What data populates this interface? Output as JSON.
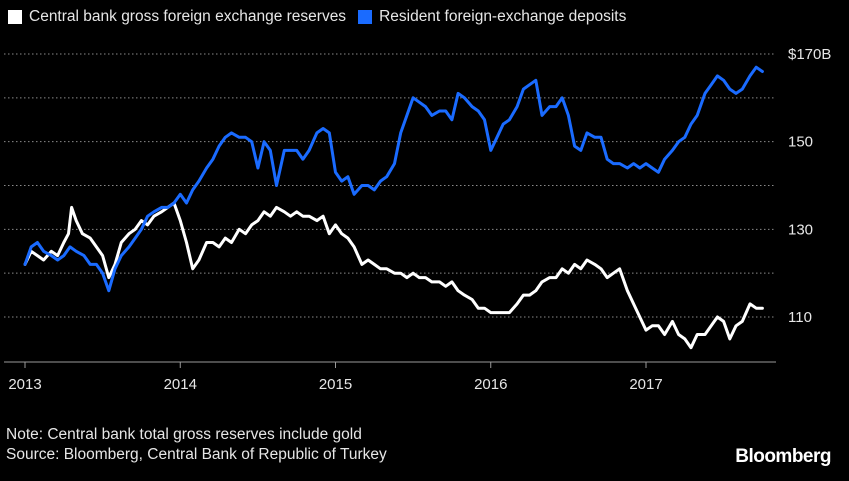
{
  "legend": [
    {
      "label": "Central bank gross foreign exchange reserves",
      "color": "#ffffff"
    },
    {
      "label": "Resident foreign-exchange deposits",
      "color": "#1a6bff"
    }
  ],
  "footer": {
    "note": "Note: Central bank total gross reserves include gold",
    "source": "Source: Bloomberg, Central Bank of Republic of Turkey"
  },
  "brand": "Bloomberg",
  "chart_data": {
    "type": "line",
    "title": "",
    "xlabel": "",
    "ylabel": "",
    "xlim": [
      2013.0,
      2017.8
    ],
    "ylim": [
      100,
      173
    ],
    "x_ticks": [
      {
        "value": 2013,
        "label": "2013"
      },
      {
        "value": 2014,
        "label": "2014"
      },
      {
        "value": 2015,
        "label": "2015"
      },
      {
        "value": 2016,
        "label": "2016"
      },
      {
        "value": 2017,
        "label": "2017"
      }
    ],
    "y_ticks": [
      {
        "value": 170,
        "label": "$170B"
      },
      {
        "value": 150,
        "label": "150"
      },
      {
        "value": 130,
        "label": "130"
      },
      {
        "value": 110,
        "label": "110"
      }
    ],
    "y_gridlines": [
      170,
      160,
      150,
      140,
      130,
      120,
      110
    ],
    "grid": true,
    "series": [
      {
        "name": "Central bank gross foreign exchange reserves",
        "color": "#ffffff",
        "points": [
          [
            2013.0,
            122
          ],
          [
            2013.04,
            125
          ],
          [
            2013.08,
            124
          ],
          [
            2013.12,
            123
          ],
          [
            2013.17,
            125
          ],
          [
            2013.21,
            124
          ],
          [
            2013.25,
            127
          ],
          [
            2013.28,
            129
          ],
          [
            2013.3,
            135
          ],
          [
            2013.33,
            132
          ],
          [
            2013.37,
            129
          ],
          [
            2013.42,
            128
          ],
          [
            2013.46,
            126
          ],
          [
            2013.5,
            124
          ],
          [
            2013.54,
            119
          ],
          [
            2013.58,
            122
          ],
          [
            2013.62,
            127
          ],
          [
            2013.67,
            129
          ],
          [
            2013.71,
            130
          ],
          [
            2013.75,
            132
          ],
          [
            2013.79,
            131
          ],
          [
            2013.83,
            133
          ],
          [
            2013.88,
            134
          ],
          [
            2013.92,
            135
          ],
          [
            2013.96,
            136
          ],
          [
            2014.0,
            132
          ],
          [
            2014.04,
            127
          ],
          [
            2014.08,
            121
          ],
          [
            2014.12,
            123
          ],
          [
            2014.17,
            127
          ],
          [
            2014.21,
            127
          ],
          [
            2014.25,
            126
          ],
          [
            2014.29,
            128
          ],
          [
            2014.33,
            127
          ],
          [
            2014.38,
            130
          ],
          [
            2014.42,
            129
          ],
          [
            2014.46,
            131
          ],
          [
            2014.5,
            132
          ],
          [
            2014.54,
            134
          ],
          [
            2014.58,
            133
          ],
          [
            2014.62,
            135
          ],
          [
            2014.67,
            134
          ],
          [
            2014.71,
            133
          ],
          [
            2014.75,
            134
          ],
          [
            2014.79,
            133
          ],
          [
            2014.83,
            133
          ],
          [
            2014.88,
            132
          ],
          [
            2014.92,
            133
          ],
          [
            2014.96,
            129
          ],
          [
            2015.0,
            131
          ],
          [
            2015.04,
            129
          ],
          [
            2015.08,
            128
          ],
          [
            2015.12,
            126
          ],
          [
            2015.17,
            122
          ],
          [
            2015.21,
            123
          ],
          [
            2015.25,
            122
          ],
          [
            2015.29,
            121
          ],
          [
            2015.33,
            121
          ],
          [
            2015.38,
            120
          ],
          [
            2015.42,
            120
          ],
          [
            2015.46,
            119
          ],
          [
            2015.5,
            120
          ],
          [
            2015.54,
            119
          ],
          [
            2015.58,
            119
          ],
          [
            2015.62,
            118
          ],
          [
            2015.67,
            118
          ],
          [
            2015.71,
            117
          ],
          [
            2015.75,
            118
          ],
          [
            2015.79,
            116
          ],
          [
            2015.83,
            115
          ],
          [
            2015.88,
            114
          ],
          [
            2015.92,
            112
          ],
          [
            2015.96,
            112
          ],
          [
            2016.0,
            111
          ],
          [
            2016.04,
            111
          ],
          [
            2016.08,
            111
          ],
          [
            2016.12,
            111
          ],
          [
            2016.17,
            113
          ],
          [
            2016.21,
            115
          ],
          [
            2016.25,
            115
          ],
          [
            2016.29,
            116
          ],
          [
            2016.33,
            118
          ],
          [
            2016.38,
            119
          ],
          [
            2016.42,
            119
          ],
          [
            2016.46,
            121
          ],
          [
            2016.5,
            120
          ],
          [
            2016.54,
            122
          ],
          [
            2016.58,
            121
          ],
          [
            2016.62,
            123
          ],
          [
            2016.67,
            122
          ],
          [
            2016.71,
            121
          ],
          [
            2016.75,
            119
          ],
          [
            2016.79,
            120
          ],
          [
            2016.83,
            121
          ],
          [
            2016.88,
            116
          ],
          [
            2016.92,
            113
          ],
          [
            2016.96,
            110
          ],
          [
            2017.0,
            107
          ],
          [
            2017.04,
            108
          ],
          [
            2017.08,
            108
          ],
          [
            2017.12,
            106
          ],
          [
            2017.17,
            109
          ],
          [
            2017.21,
            106
          ],
          [
            2017.25,
            105
          ],
          [
            2017.29,
            103
          ],
          [
            2017.33,
            106
          ],
          [
            2017.38,
            106
          ],
          [
            2017.42,
            108
          ],
          [
            2017.46,
            110
          ],
          [
            2017.5,
            109
          ],
          [
            2017.54,
            105
          ],
          [
            2017.58,
            108
          ],
          [
            2017.62,
            109
          ],
          [
            2017.67,
            113
          ],
          [
            2017.71,
            112
          ],
          [
            2017.75,
            112
          ]
        ]
      },
      {
        "name": "Resident foreign-exchange deposits",
        "color": "#1a6bff",
        "points": [
          [
            2013.0,
            122
          ],
          [
            2013.04,
            126
          ],
          [
            2013.08,
            127
          ],
          [
            2013.12,
            125
          ],
          [
            2013.17,
            124
          ],
          [
            2013.21,
            123
          ],
          [
            2013.25,
            124
          ],
          [
            2013.29,
            126
          ],
          [
            2013.33,
            125
          ],
          [
            2013.38,
            124
          ],
          [
            2013.42,
            122
          ],
          [
            2013.46,
            122
          ],
          [
            2013.5,
            120
          ],
          [
            2013.54,
            116
          ],
          [
            2013.58,
            121
          ],
          [
            2013.62,
            124
          ],
          [
            2013.67,
            126
          ],
          [
            2013.71,
            128
          ],
          [
            2013.75,
            130
          ],
          [
            2013.79,
            133
          ],
          [
            2013.83,
            134
          ],
          [
            2013.88,
            135
          ],
          [
            2013.92,
            135
          ],
          [
            2013.96,
            136
          ],
          [
            2014.0,
            138
          ],
          [
            2014.04,
            136
          ],
          [
            2014.08,
            139
          ],
          [
            2014.12,
            141
          ],
          [
            2014.17,
            144
          ],
          [
            2014.21,
            146
          ],
          [
            2014.25,
            149
          ],
          [
            2014.29,
            151
          ],
          [
            2014.33,
            152
          ],
          [
            2014.38,
            151
          ],
          [
            2014.42,
            151
          ],
          [
            2014.46,
            150
          ],
          [
            2014.5,
            144
          ],
          [
            2014.54,
            150
          ],
          [
            2014.58,
            148
          ],
          [
            2014.62,
            140
          ],
          [
            2014.67,
            148
          ],
          [
            2014.71,
            148
          ],
          [
            2014.75,
            148
          ],
          [
            2014.79,
            146
          ],
          [
            2014.83,
            148
          ],
          [
            2014.88,
            152
          ],
          [
            2014.92,
            153
          ],
          [
            2014.96,
            152
          ],
          [
            2015.0,
            143
          ],
          [
            2015.04,
            141
          ],
          [
            2015.08,
            142
          ],
          [
            2015.12,
            138
          ],
          [
            2015.17,
            140
          ],
          [
            2015.21,
            140
          ],
          [
            2015.25,
            139
          ],
          [
            2015.29,
            141
          ],
          [
            2015.33,
            142
          ],
          [
            2015.38,
            145
          ],
          [
            2015.42,
            152
          ],
          [
            2015.46,
            156
          ],
          [
            2015.5,
            160
          ],
          [
            2015.54,
            159
          ],
          [
            2015.58,
            158
          ],
          [
            2015.62,
            156
          ],
          [
            2015.67,
            157
          ],
          [
            2015.71,
            157
          ],
          [
            2015.75,
            155
          ],
          [
            2015.79,
            161
          ],
          [
            2015.83,
            160
          ],
          [
            2015.88,
            158
          ],
          [
            2015.92,
            157
          ],
          [
            2015.96,
            155
          ],
          [
            2016.0,
            148
          ],
          [
            2016.04,
            151
          ],
          [
            2016.08,
            154
          ],
          [
            2016.12,
            155
          ],
          [
            2016.17,
            158
          ],
          [
            2016.21,
            162
          ],
          [
            2016.25,
            163
          ],
          [
            2016.29,
            164
          ],
          [
            2016.33,
            156
          ],
          [
            2016.38,
            158
          ],
          [
            2016.42,
            158
          ],
          [
            2016.46,
            160
          ],
          [
            2016.5,
            156
          ],
          [
            2016.54,
            149
          ],
          [
            2016.58,
            148
          ],
          [
            2016.62,
            152
          ],
          [
            2016.67,
            151
          ],
          [
            2016.71,
            151
          ],
          [
            2016.75,
            146
          ],
          [
            2016.79,
            145
          ],
          [
            2016.83,
            145
          ],
          [
            2016.88,
            144
          ],
          [
            2016.92,
            145
          ],
          [
            2016.96,
            144
          ],
          [
            2017.0,
            145
          ],
          [
            2017.04,
            144
          ],
          [
            2017.08,
            143
          ],
          [
            2017.12,
            146
          ],
          [
            2017.17,
            148
          ],
          [
            2017.21,
            150
          ],
          [
            2017.25,
            151
          ],
          [
            2017.29,
            154
          ],
          [
            2017.33,
            156
          ],
          [
            2017.38,
            161
          ],
          [
            2017.42,
            163
          ],
          [
            2017.46,
            165
          ],
          [
            2017.5,
            164
          ],
          [
            2017.54,
            162
          ],
          [
            2017.58,
            161
          ],
          [
            2017.62,
            162
          ],
          [
            2017.67,
            165
          ],
          [
            2017.71,
            167
          ],
          [
            2017.75,
            166
          ]
        ]
      }
    ]
  }
}
